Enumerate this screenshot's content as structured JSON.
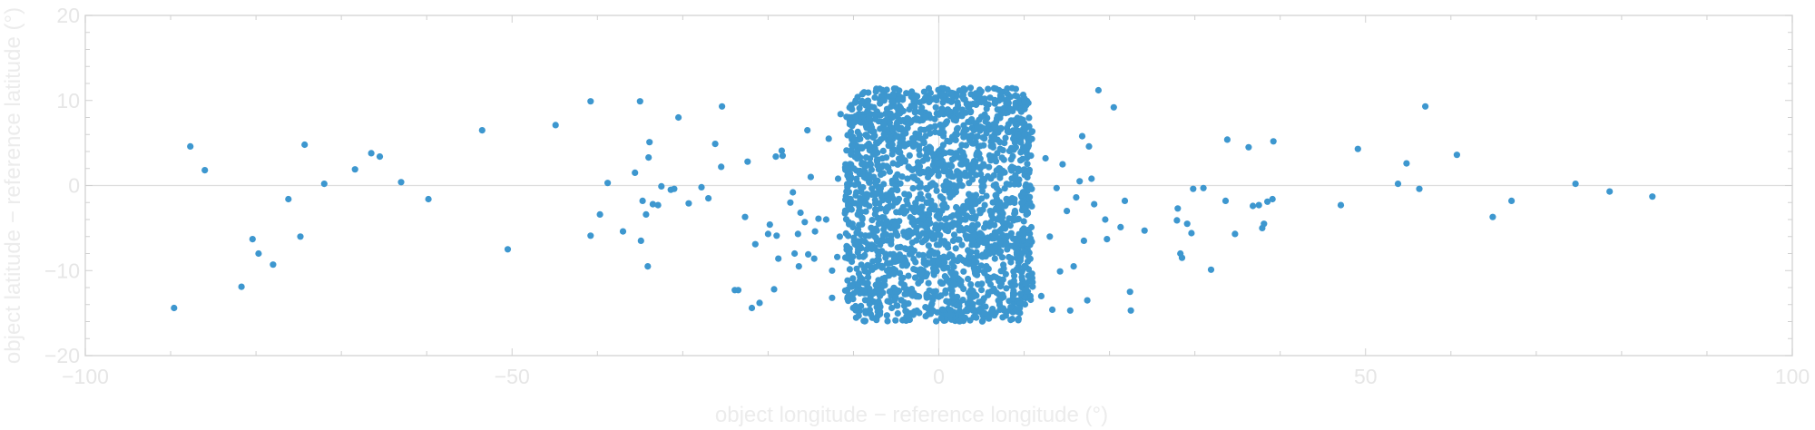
{
  "chart_data": {
    "type": "scatter",
    "xlabel": "object longitude − reference longitude (°)",
    "ylabel": "object latitude − reference latitude (°)",
    "xlim": [
      -100,
      100
    ],
    "ylim": [
      -20,
      20
    ],
    "x_ticks": [
      -100,
      -50,
      0,
      50,
      100
    ],
    "y_ticks": [
      -20,
      -10,
      0,
      10,
      20
    ],
    "x_tick_labels": [
      "−100",
      "−50",
      "0",
      "50",
      "100"
    ],
    "y_tick_labels": [
      "−20",
      "−10",
      "0",
      "10",
      "20"
    ],
    "grid": "zero lines only",
    "colors": {
      "point": "#3d97cf",
      "frame": "#d9d9d9",
      "zero_line": "#dddddd",
      "text": "#e6e6e6"
    },
    "cluster": {
      "description_of_dense_core": "dense cloud of points",
      "x_range": [
        -11,
        11
      ],
      "y_range": [
        -16,
        11.5
      ],
      "approx_count": 2000
    },
    "outliers": [
      [
        -89.6,
        -14.4
      ],
      [
        -87.7,
        4.6
      ],
      [
        -86.0,
        1.8
      ],
      [
        -81.7,
        -11.9
      ],
      [
        -80.4,
        -6.3
      ],
      [
        -79.7,
        -8.0
      ],
      [
        -78.0,
        -9.3
      ],
      [
        -76.2,
        -1.6
      ],
      [
        -74.8,
        -6.0
      ],
      [
        -74.3,
        4.8
      ],
      [
        -72.0,
        0.2
      ],
      [
        -68.4,
        1.9
      ],
      [
        -66.5,
        3.8
      ],
      [
        -65.5,
        3.4
      ],
      [
        -63.0,
        0.4
      ],
      [
        -59.8,
        -1.6
      ],
      [
        -53.5,
        6.5
      ],
      [
        -50.5,
        -7.5
      ],
      [
        -44.9,
        7.1
      ],
      [
        -40.8,
        9.9
      ],
      [
        -40.8,
        -5.9
      ],
      [
        -39.7,
        -3.4
      ],
      [
        -38.8,
        0.3
      ],
      [
        -37.0,
        -5.4
      ],
      [
        -35.6,
        1.5
      ],
      [
        -35.0,
        9.9
      ],
      [
        -34.9,
        -6.5
      ],
      [
        -34.7,
        -1.8
      ],
      [
        -34.3,
        -3.4
      ],
      [
        -34.1,
        -9.5
      ],
      [
        -34.0,
        3.3
      ],
      [
        -33.9,
        5.1
      ],
      [
        -33.5,
        -2.2
      ],
      [
        -32.9,
        -2.3
      ],
      [
        -32.5,
        -0.1
      ],
      [
        -31.4,
        -0.5
      ],
      [
        -31.0,
        -0.4
      ],
      [
        -30.5,
        8.0
      ],
      [
        -29.3,
        -2.1
      ],
      [
        -27.8,
        -0.2
      ],
      [
        -27.0,
        -1.5
      ],
      [
        -26.2,
        4.9
      ],
      [
        -25.5,
        2.2
      ],
      [
        -25.4,
        9.3
      ],
      [
        -23.9,
        -12.3
      ],
      [
        -23.5,
        -12.3
      ],
      [
        -22.7,
        -3.7
      ],
      [
        -22.4,
        2.8
      ],
      [
        -21.9,
        -14.4
      ],
      [
        -21.5,
        -6.9
      ],
      [
        -21.0,
        -13.8
      ],
      [
        -20.0,
        -5.7
      ],
      [
        -19.8,
        -4.6
      ],
      [
        -19.3,
        -12.2
      ],
      [
        -19.1,
        3.4
      ],
      [
        -19.0,
        -5.9
      ],
      [
        -18.8,
        -8.6
      ],
      [
        -18.4,
        4.1
      ],
      [
        -18.3,
        3.5
      ],
      [
        -17.4,
        -2.0
      ],
      [
        -17.1,
        -0.8
      ],
      [
        -16.9,
        -8.0
      ],
      [
        -16.5,
        -5.7
      ],
      [
        -16.4,
        -9.5
      ],
      [
        -16.2,
        -3.2
      ],
      [
        -15.7,
        -4.3
      ],
      [
        -15.4,
        6.5
      ],
      [
        -15.3,
        -8.1
      ],
      [
        -15.0,
        1.0
      ],
      [
        -14.6,
        -8.6
      ],
      [
        -14.5,
        -5.4
      ],
      [
        -14.1,
        -3.9
      ],
      [
        -13.2,
        -4.0
      ],
      [
        -12.9,
        5.5
      ],
      [
        -12.5,
        -13.2
      ],
      [
        -12.5,
        -10.0
      ],
      [
        -11.9,
        -8.4
      ],
      [
        -11.8,
        0.8
      ],
      [
        -11.6,
        -6.0
      ],
      [
        -11.5,
        8.4
      ],
      [
        12.0,
        -13.0
      ],
      [
        12.5,
        3.2
      ],
      [
        13.0,
        -6.0
      ],
      [
        13.3,
        -14.6
      ],
      [
        13.8,
        -0.3
      ],
      [
        14.2,
        -10.1
      ],
      [
        14.5,
        2.5
      ],
      [
        15.0,
        -3.0
      ],
      [
        15.4,
        -14.7
      ],
      [
        15.8,
        -9.5
      ],
      [
        16.1,
        -1.4
      ],
      [
        16.5,
        0.5
      ],
      [
        16.8,
        5.8
      ],
      [
        17.0,
        -6.5
      ],
      [
        17.4,
        -13.5
      ],
      [
        17.6,
        4.6
      ],
      [
        17.9,
        0.8
      ],
      [
        18.2,
        -2.2
      ],
      [
        18.7,
        11.2
      ],
      [
        19.5,
        -4.0
      ],
      [
        19.7,
        -6.3
      ],
      [
        20.5,
        9.2
      ],
      [
        21.3,
        -4.9
      ],
      [
        21.8,
        -1.8
      ],
      [
        22.4,
        -12.5
      ],
      [
        22.5,
        -14.7
      ],
      [
        24.1,
        -5.3
      ],
      [
        27.9,
        -4.1
      ],
      [
        28.0,
        -2.7
      ],
      [
        28.3,
        -8.0
      ],
      [
        28.5,
        -8.5
      ],
      [
        29.1,
        -4.5
      ],
      [
        29.6,
        -5.6
      ],
      [
        29.8,
        -0.4
      ],
      [
        31.0,
        -0.3
      ],
      [
        31.9,
        -9.9
      ],
      [
        33.6,
        -1.8
      ],
      [
        33.8,
        5.4
      ],
      [
        34.7,
        -5.7
      ],
      [
        36.3,
        4.5
      ],
      [
        36.8,
        -2.4
      ],
      [
        37.5,
        -2.3
      ],
      [
        37.9,
        -5.0
      ],
      [
        38.1,
        -4.5
      ],
      [
        38.5,
        -1.9
      ],
      [
        39.1,
        -1.6
      ],
      [
        39.2,
        5.2
      ],
      [
        47.1,
        -2.3
      ],
      [
        49.1,
        4.3
      ],
      [
        53.8,
        0.2
      ],
      [
        54.8,
        2.6
      ],
      [
        56.3,
        -0.4
      ],
      [
        57.0,
        9.3
      ],
      [
        60.7,
        3.6
      ],
      [
        64.9,
        -3.7
      ],
      [
        67.1,
        -1.8
      ],
      [
        74.6,
        0.2
      ],
      [
        78.6,
        -0.7
      ],
      [
        83.6,
        -1.3
      ]
    ]
  }
}
